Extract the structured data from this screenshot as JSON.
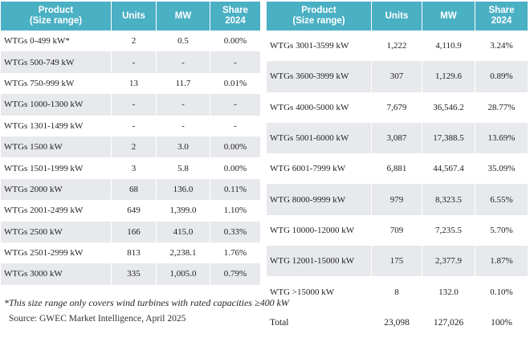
{
  "left_table": {
    "headers": {
      "product": "Product",
      "product_sub": "(Size range)",
      "units": "Units",
      "mw": "MW",
      "share": "Share",
      "share_sub": "2024"
    },
    "rows": [
      {
        "product": "WTGs 0-499 kW*",
        "units": "2",
        "mw": "0.5",
        "share": "0.00%"
      },
      {
        "product": "WTGs 500-749 kW",
        "units": "-",
        "mw": "-",
        "share": "-"
      },
      {
        "product": "WTGs 750-999 kW",
        "units": "13",
        "mw": "11.7",
        "share": "0.01%"
      },
      {
        "product": "WTGs 1000-1300 kW",
        "units": "-",
        "mw": "-",
        "share": "-"
      },
      {
        "product": "WTGs 1301-1499 kW",
        "units": "-",
        "mw": "-",
        "share": "-"
      },
      {
        "product": "WTGs 1500 kW",
        "units": "2",
        "mw": "3.0",
        "share": "0.00%"
      },
      {
        "product": "WTGs 1501-1999 kW",
        "units": "3",
        "mw": "5.8",
        "share": "0.00%"
      },
      {
        "product": "WTGs 2000 kW",
        "units": "68",
        "mw": "136.0",
        "share": "0.11%"
      },
      {
        "product": "WTGs 2001-2499 kW",
        "units": "649",
        "mw": "1,399.0",
        "share": "1.10%"
      },
      {
        "product": "WTGs 2500 kW",
        "units": "166",
        "mw": "415.0",
        "share": "0.33%"
      },
      {
        "product": "WTGs 2501-2999 kW",
        "units": "813",
        "mw": "2,238.1",
        "share": "1.76%"
      },
      {
        "product": "WTGs 3000 kW",
        "units": "335",
        "mw": "1,005.0",
        "share": "0.79%"
      }
    ]
  },
  "right_table": {
    "headers": {
      "product": "Product",
      "product_sub": "(Size range)",
      "units": "Units",
      "mw": "MW",
      "share": "Share",
      "share_sub": "2024"
    },
    "rows": [
      {
        "product": "WTGs 3001-3599 kW",
        "units": "1,222",
        "mw": "4,110.9",
        "share": "3.24%"
      },
      {
        "product": "WTGs 3600-3999 kW",
        "units": "307",
        "mw": "1,129.6",
        "share": "0.89%"
      },
      {
        "product": "WTGs 4000-5000 kW",
        "units": "7,679",
        "mw": "36,546.2",
        "share": "28.77%"
      },
      {
        "product": "WTGs 5001-6000 kW",
        "units": "3,087",
        "mw": "17,388.5",
        "share": "13.69%"
      },
      {
        "product": "WTG 6001-7999 kW",
        "units": "6,881",
        "mw": "44,567.4",
        "share": "35.09%"
      },
      {
        "product": "WTG 8000-9999 kW",
        "units": "979",
        "mw": "8,323.5",
        "share": "6.55%"
      },
      {
        "product": "WTG 10000-12000 kW",
        "units": "709",
        "mw": "7,235.5",
        "share": "5.70%"
      },
      {
        "product": "WTG 12001-15000 kW",
        "units": "175",
        "mw": "2,377.9",
        "share": "1.87%"
      },
      {
        "product": "WTG >15000 kW",
        "units": "8",
        "mw": "132.0",
        "share": "0.10%"
      }
    ],
    "total": {
      "product": "Total",
      "units": "23,098",
      "mw": "127,026",
      "share": "100%"
    }
  },
  "footnote": "*This size range only covers wind turbines with rated capacities  ≥400 kW",
  "source": "Source: GWEC Market Intelligence, April 2025",
  "colors": {
    "header_bg": "#4ab0c4",
    "stripe_bg": "#e7e9ec",
    "header_text": "#ffffff"
  }
}
